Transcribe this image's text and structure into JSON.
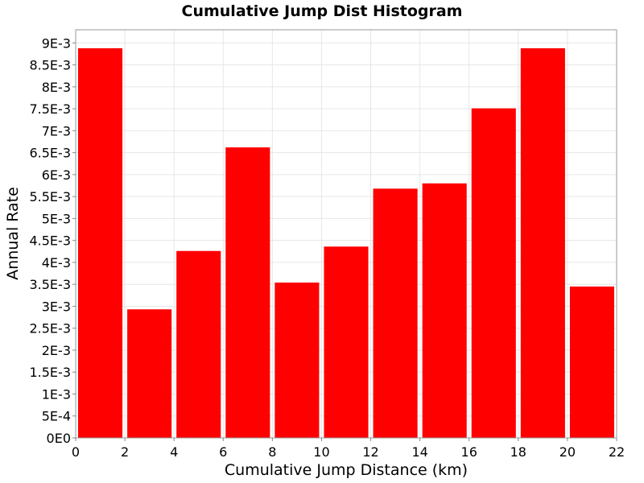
{
  "chart_data": {
    "type": "bar",
    "title": "Cumulative Jump Dist Histogram",
    "xlabel": "Cumulative Jump Distance (km)",
    "ylabel": "Annual Rate",
    "bar_color": "#ff0000",
    "xlim": [
      0,
      22
    ],
    "ylim": [
      0,
      0.0093
    ],
    "x_ticks": [
      "0",
      "2",
      "4",
      "6",
      "8",
      "10",
      "12",
      "14",
      "16",
      "18",
      "20",
      "22"
    ],
    "y_ticks": [
      "0E0",
      "5E-4",
      "1E-3",
      "1.5E-3",
      "2E-3",
      "2.5E-3",
      "3E-3",
      "3.5E-3",
      "4E-3",
      "4.5E-3",
      "5E-3",
      "5.5E-3",
      "6E-3",
      "6.5E-3",
      "7E-3",
      "7.5E-3",
      "8E-3",
      "8.5E-3",
      "9E-3"
    ],
    "bins": [
      {
        "x": 1,
        "value": 0.00888
      },
      {
        "x": 3,
        "value": 0.00293
      },
      {
        "x": 5,
        "value": 0.00426
      },
      {
        "x": 7,
        "value": 0.00662
      },
      {
        "x": 9,
        "value": 0.00354
      },
      {
        "x": 11,
        "value": 0.00436
      },
      {
        "x": 13,
        "value": 0.00568
      },
      {
        "x": 15,
        "value": 0.0058
      },
      {
        "x": 17,
        "value": 0.00751
      },
      {
        "x": 19,
        "value": 0.00888
      },
      {
        "x": 21,
        "value": 0.00345
      }
    ],
    "bin_width": 2
  }
}
